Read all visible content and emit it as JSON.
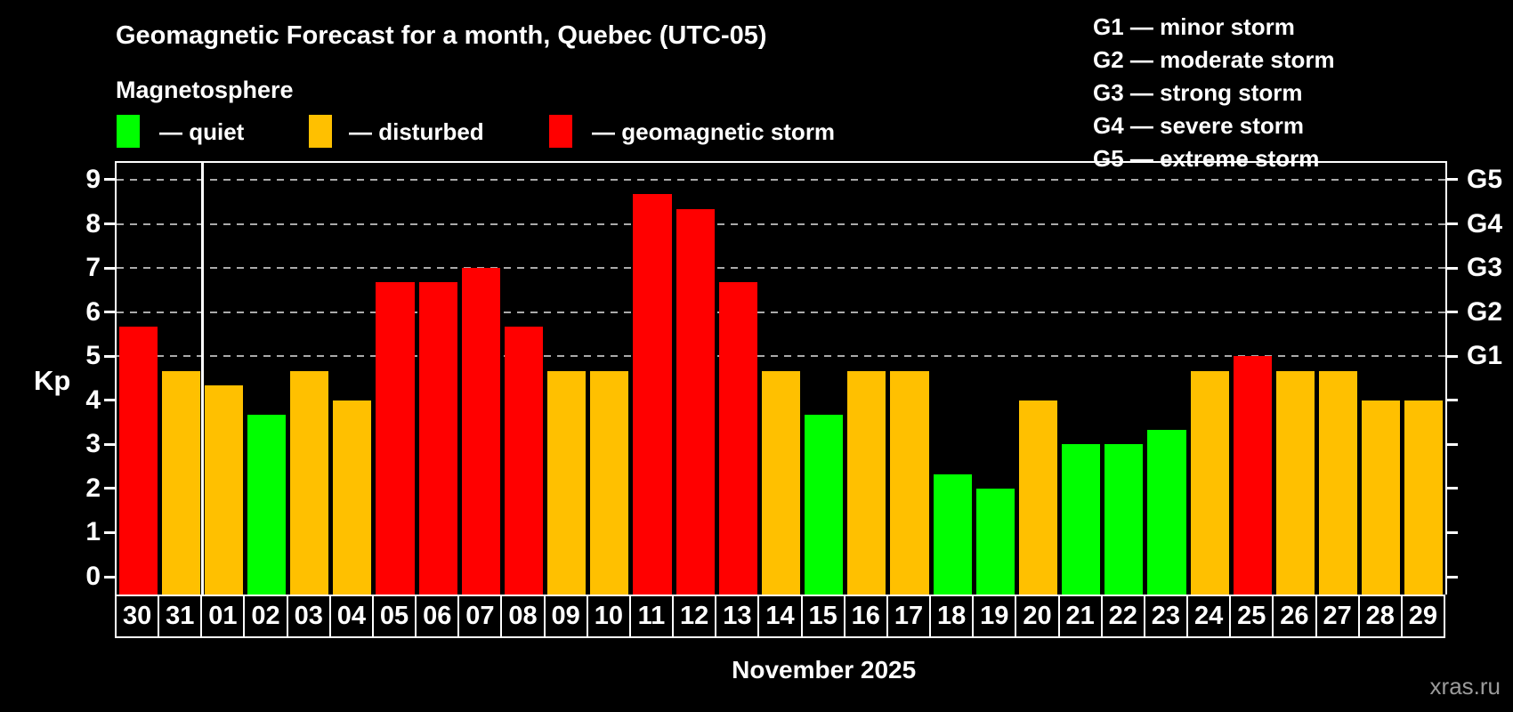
{
  "title": "Geomagnetic Forecast for a month, Quebec (UTC-05)",
  "subtitle": "Magnetosphere",
  "legend": {
    "items": [
      {
        "key": "quiet",
        "label": "— quiet"
      },
      {
        "key": "disturbed",
        "label": "— disturbed"
      },
      {
        "key": "storm",
        "label": "— geomagnetic storm"
      }
    ]
  },
  "storm_scale_legend": [
    "G1 — minor storm",
    "G2 — moderate storm",
    "G3 — strong storm",
    "G4 — severe storm",
    "G5 — extreme storm"
  ],
  "colors": {
    "quiet": "#00ff00",
    "disturbed": "#ffc000",
    "storm": "#ff0000",
    "background": "#000000",
    "grid": "#aaaaaa",
    "frame": "#ffffff",
    "watermark": "#9b9b9b"
  },
  "watermark": "xras.ru",
  "chart_data": {
    "type": "bar",
    "title": "Geomagnetic Forecast for a month, Quebec (UTC-05)",
    "xlabel": "November 2025",
    "ylabel": "Kp",
    "ylim": [
      -0.4,
      9.4
    ],
    "yticks": [
      0,
      1,
      2,
      3,
      4,
      5,
      6,
      7,
      8,
      9
    ],
    "gridlines_at": [
      5,
      6,
      7,
      8,
      9
    ],
    "grid": "dashed horizontal at storm levels only",
    "legend_position": "top",
    "right_axis_labels": [
      {
        "kp": 5,
        "label": "G1"
      },
      {
        "kp": 6,
        "label": "G2"
      },
      {
        "kp": 7,
        "label": "G3"
      },
      {
        "kp": 8,
        "label": "G4"
      },
      {
        "kp": 9,
        "label": "G5"
      }
    ],
    "month_separator_after_index": 1,
    "categories": [
      "30",
      "31",
      "01",
      "02",
      "03",
      "04",
      "05",
      "06",
      "07",
      "08",
      "09",
      "10",
      "11",
      "12",
      "13",
      "14",
      "15",
      "16",
      "17",
      "18",
      "19",
      "20",
      "21",
      "22",
      "23",
      "24",
      "25",
      "26",
      "27",
      "28",
      "29"
    ],
    "values": [
      5.67,
      4.67,
      4.33,
      3.67,
      4.67,
      4,
      6.67,
      6.67,
      7,
      5.67,
      4.67,
      4.67,
      8.67,
      8.33,
      6.67,
      4.67,
      3.67,
      4.67,
      4.67,
      2.33,
      2,
      4,
      3,
      3,
      3.33,
      4.67,
      5,
      4.67,
      4.67,
      4,
      4
    ],
    "statuses": [
      "storm",
      "disturbed",
      "disturbed",
      "quiet",
      "disturbed",
      "disturbed",
      "storm",
      "storm",
      "storm",
      "storm",
      "disturbed",
      "disturbed",
      "storm",
      "storm",
      "storm",
      "disturbed",
      "quiet",
      "disturbed",
      "disturbed",
      "quiet",
      "quiet",
      "disturbed",
      "quiet",
      "quiet",
      "quiet",
      "disturbed",
      "storm",
      "disturbed",
      "disturbed",
      "disturbed",
      "disturbed"
    ]
  }
}
